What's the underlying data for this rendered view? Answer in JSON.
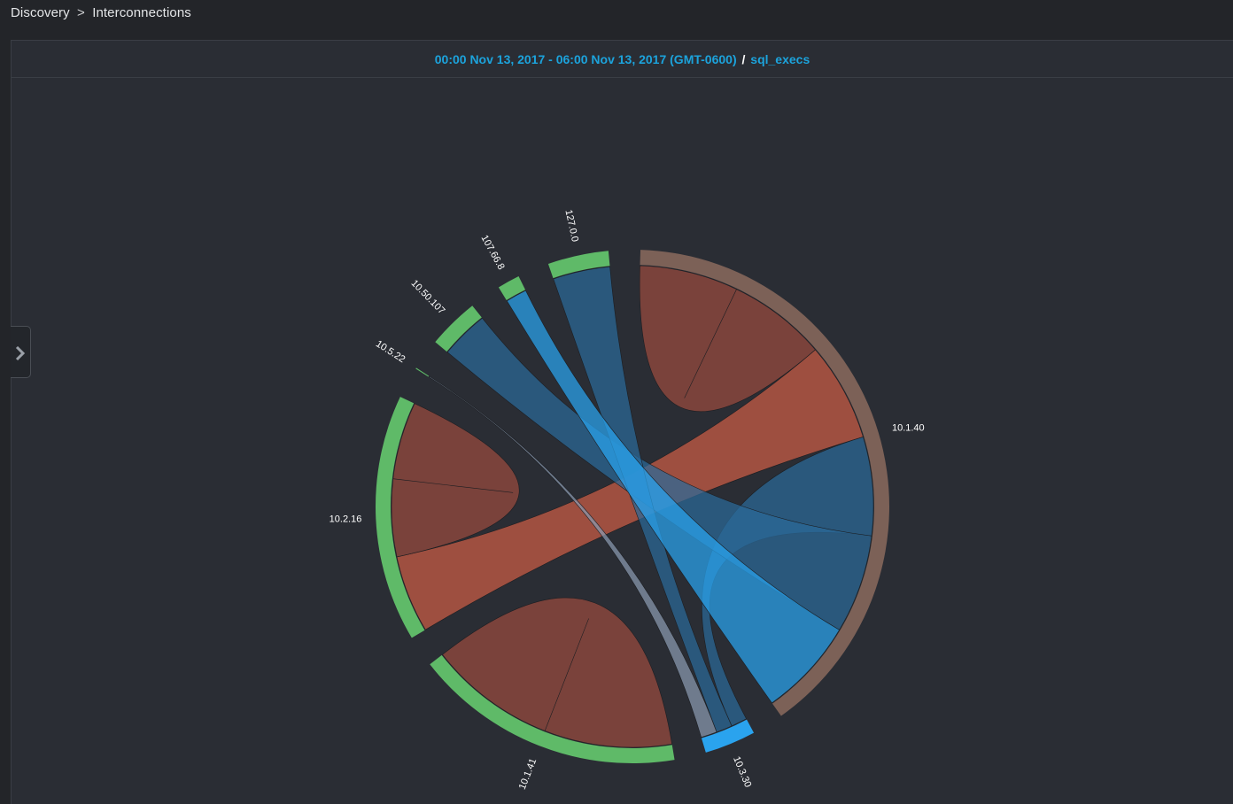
{
  "breadcrumb": {
    "parent": "Discovery",
    "separator": ">",
    "current": "Interconnections"
  },
  "header": {
    "time_range": "00:00 Nov 13, 2017 - 06:00 Nov 13, 2017 (GMT-0600)",
    "separator": "/",
    "metric": "sql_execs"
  },
  "sidebar_toggle": {
    "icon": "chevron-right-icon"
  },
  "colors": {
    "background": "#232529",
    "panel": "#2a2d34",
    "link": "#1ca3dc",
    "group_green": "#5fba68",
    "group_brown": "#7c6157",
    "group_blue": "#2aa3ee",
    "chord_red": "#9a4b3e",
    "chord_red_light": "#cc5d45",
    "chord_blue": "#2b6a99",
    "chord_blue_light": "#2aa3ee",
    "chord_gray": "#8a9ab0"
  },
  "chart_data": {
    "type": "chord",
    "title": "",
    "groups": [
      {
        "name": "10.1.40",
        "span_deg": 135.0,
        "color": "#7c6157"
      },
      {
        "name": "10.3.30",
        "span_deg": 14.0,
        "color": "#2aa3ee"
      },
      {
        "name": "10.1.41",
        "span_deg": 60.0,
        "color": "#5fba68"
      },
      {
        "name": "10.2.16",
        "span_deg": 55.0,
        "color": "#5fba68"
      },
      {
        "name": "10.5.22",
        "span_deg": 3.5,
        "color": "#5fba68"
      },
      {
        "name": "10.50.107",
        "span_deg": 14.0,
        "color": "#5fba68"
      },
      {
        "name": "107.66.8",
        "span_deg": 8.0,
        "color": "#5fba68"
      },
      {
        "name": "127.0.0",
        "span_deg": 16.0,
        "color": "#5fba68"
      }
    ],
    "chords": [
      {
        "source": "10.1.40",
        "target": "10.1.40",
        "color": "#9a4b3e"
      },
      {
        "source": "10.1.40",
        "target": "10.2.16",
        "color": "#cc5d45"
      },
      {
        "source": "10.1.41",
        "target": "10.1.41",
        "color": "#9a4b3e"
      },
      {
        "source": "10.2.16",
        "target": "10.2.16",
        "color": "#9a4b3e"
      },
      {
        "source": "10.3.30",
        "target": "10.1.40",
        "color": "#2b6a99"
      },
      {
        "source": "10.50.107",
        "target": "10.1.40",
        "color": "#2b6a99"
      },
      {
        "source": "127.0.0",
        "target": "10.3.30",
        "color": "#2b6a99"
      },
      {
        "source": "107.66.8",
        "target": "10.1.40",
        "color": "#2aa3ee"
      },
      {
        "source": "10.5.22",
        "target": "10.3.30",
        "color": "#8a9ab0"
      }
    ]
  }
}
